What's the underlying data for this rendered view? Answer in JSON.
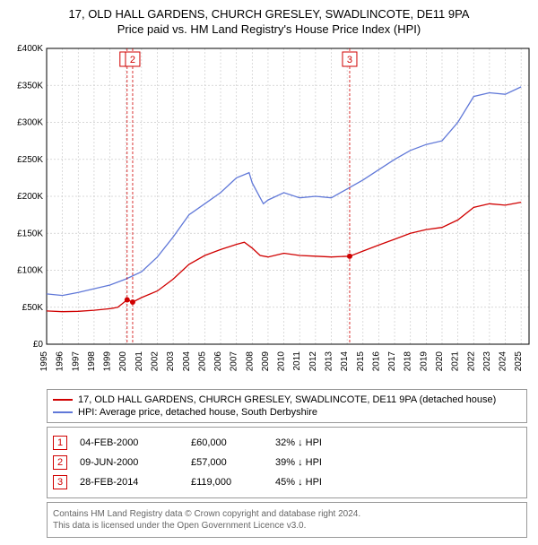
{
  "title_line1": "17, OLD HALL GARDENS, CHURCH GRESLEY, SWADLINCOTE, DE11 9PA",
  "title_line2": "Price paid vs. HM Land Registry's House Price Index (HPI)",
  "chart": {
    "type": "line",
    "plot_bg": "#ffffff",
    "axis_color": "#000000",
    "grid_color": "#cccccc",
    "grid_dash": "2,2",
    "ylim": [
      0,
      400000
    ],
    "ytick_step": 50000,
    "ytick_labels": [
      "£0",
      "£50K",
      "£100K",
      "£150K",
      "£200K",
      "£250K",
      "£300K",
      "£350K",
      "£400K"
    ],
    "xlim": [
      1995,
      2025.5
    ],
    "xticks": [
      1995,
      1996,
      1997,
      1998,
      1999,
      2000,
      2001,
      2002,
      2003,
      2004,
      2005,
      2006,
      2007,
      2008,
      2009,
      2010,
      2011,
      2012,
      2013,
      2014,
      2015,
      2016,
      2017,
      2018,
      2019,
      2020,
      2021,
      2022,
      2023,
      2024,
      2025
    ],
    "series": [
      {
        "name": "property",
        "color": "#d00000",
        "width": 1.3,
        "data": [
          [
            1995,
            45000
          ],
          [
            1996,
            44000
          ],
          [
            1997,
            44500
          ],
          [
            1998,
            46000
          ],
          [
            1999,
            48000
          ],
          [
            1999.5,
            50000
          ],
          [
            2000.09,
            60000
          ],
          [
            2000.44,
            57000
          ],
          [
            2001,
            63000
          ],
          [
            2002,
            72000
          ],
          [
            2003,
            88000
          ],
          [
            2004,
            108000
          ],
          [
            2005,
            120000
          ],
          [
            2006,
            128000
          ],
          [
            2007,
            135000
          ],
          [
            2007.5,
            138000
          ],
          [
            2008,
            130000
          ],
          [
            2008.5,
            120000
          ],
          [
            2009,
            118000
          ],
          [
            2010,
            123000
          ],
          [
            2011,
            120000
          ],
          [
            2012,
            119000
          ],
          [
            2013,
            118000
          ],
          [
            2014.16,
            119000
          ],
          [
            2015,
            126000
          ],
          [
            2016,
            134000
          ],
          [
            2017,
            142000
          ],
          [
            2018,
            150000
          ],
          [
            2019,
            155000
          ],
          [
            2020,
            158000
          ],
          [
            2021,
            168000
          ],
          [
            2022,
            185000
          ],
          [
            2023,
            190000
          ],
          [
            2024,
            188000
          ],
          [
            2025,
            192000
          ]
        ]
      },
      {
        "name": "hpi",
        "color": "#6078d8",
        "width": 1.3,
        "data": [
          [
            1995,
            68000
          ],
          [
            1996,
            66000
          ],
          [
            1997,
            70000
          ],
          [
            1998,
            75000
          ],
          [
            1999,
            80000
          ],
          [
            2000,
            88000
          ],
          [
            2001,
            98000
          ],
          [
            2002,
            118000
          ],
          [
            2003,
            145000
          ],
          [
            2004,
            175000
          ],
          [
            2005,
            190000
          ],
          [
            2006,
            205000
          ],
          [
            2007,
            225000
          ],
          [
            2007.8,
            232000
          ],
          [
            2008,
            218000
          ],
          [
            2008.7,
            190000
          ],
          [
            2009,
            195000
          ],
          [
            2010,
            205000
          ],
          [
            2011,
            198000
          ],
          [
            2012,
            200000
          ],
          [
            2013,
            198000
          ],
          [
            2014,
            210000
          ],
          [
            2015,
            222000
          ],
          [
            2016,
            236000
          ],
          [
            2017,
            250000
          ],
          [
            2018,
            262000
          ],
          [
            2019,
            270000
          ],
          [
            2020,
            275000
          ],
          [
            2021,
            300000
          ],
          [
            2022,
            335000
          ],
          [
            2023,
            340000
          ],
          [
            2024,
            338000
          ],
          [
            2025,
            348000
          ]
        ]
      }
    ],
    "sale_markers": [
      {
        "id": "1",
        "x": 2000.09,
        "y": 60000
      },
      {
        "id": "2",
        "x": 2000.44,
        "y": 57000
      },
      {
        "id": "3",
        "x": 2014.16,
        "y": 119000
      }
    ],
    "marker_color": "#d00000",
    "marker_fill": "#d00000",
    "marker_radius": 3
  },
  "legend": {
    "items": [
      {
        "color": "#d00000",
        "label": "17, OLD HALL GARDENS, CHURCH GRESLEY, SWADLINCOTE, DE11 9PA (detached house)"
      },
      {
        "color": "#6078d8",
        "label": "HPI: Average price, detached house, South Derbyshire"
      }
    ]
  },
  "sales": [
    {
      "id": "1",
      "date": "04-FEB-2000",
      "price": "£60,000",
      "diff": "32% ↓ HPI"
    },
    {
      "id": "2",
      "date": "09-JUN-2000",
      "price": "£57,000",
      "diff": "39% ↓ HPI"
    },
    {
      "id": "3",
      "date": "28-FEB-2014",
      "price": "£119,000",
      "diff": "45% ↓ HPI"
    }
  ],
  "footer_line1": "Contains HM Land Registry data © Crown copyright and database right 2024.",
  "footer_line2": "This data is licensed under the Open Government Licence v3.0."
}
